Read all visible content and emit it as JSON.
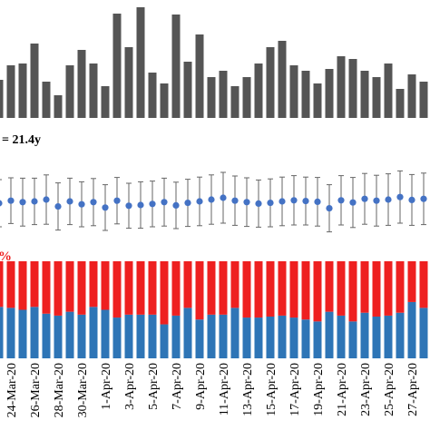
{
  "chart_data": [
    {
      "type": "bar",
      "color": "#555555",
      "ylim": [
        0,
        130
      ],
      "values": [
        42,
        58,
        60,
        82,
        40,
        25,
        58,
        75,
        60,
        35,
        115,
        78,
        122,
        50,
        38,
        114,
        62,
        92,
        45,
        52,
        35,
        45,
        60,
        78,
        85,
        58,
        52,
        38,
        54,
        68,
        65,
        52,
        45,
        60,
        32,
        48,
        40
      ]
    },
    {
      "type": "errorbar",
      "title": "= 21.4y",
      "color": "#4472c4",
      "ylim": [
        10,
        35
      ],
      "values": [
        21.5,
        22.2,
        21.8,
        22.0,
        22.5,
        20.6,
        22.0,
        21.2,
        21.8,
        20.3,
        22.2,
        20.8,
        21.0,
        21.3,
        21.8,
        20.9,
        21.6,
        22.0,
        22.5,
        23.0,
        22.2,
        21.8,
        21.4,
        21.6,
        22.0,
        22.3,
        22.1,
        21.9,
        20.1,
        22.3,
        21.7,
        22.7,
        22.2,
        22.5,
        23.2,
        22.4,
        22.7
      ],
      "errors": [
        6.5,
        6.3,
        6.6,
        6.4,
        6.8,
        6.5,
        6.4,
        6.2,
        6.5,
        6.3,
        6.4,
        6.2,
        6.4,
        6.3,
        6.6,
        6.4,
        6.5,
        6.7,
        6.8,
        7.0,
        6.8,
        6.7,
        6.5,
        6.6,
        6.7,
        6.8,
        6.6,
        6.7,
        6.5,
        6.8,
        6.9,
        7.0,
        7.0,
        7.1,
        7.2,
        7.0,
        7.1
      ]
    },
    {
      "type": "stacked-bar",
      "title": "%",
      "ylim": [
        0,
        100
      ],
      "categories": [
        null,
        "24-Mar-20",
        null,
        "26-Mar-20",
        null,
        "28-Mar-20",
        null,
        "30-Mar-20",
        null,
        "1-Apr-20",
        null,
        "3-Apr-20",
        null,
        "5-Apr-20",
        null,
        "7-Apr-20",
        null,
        "9-Apr-20",
        null,
        "11-Apr-20",
        null,
        "13-Apr-20",
        null,
        "15-Apr-20",
        null,
        "17-Apr-20",
        null,
        "19-Apr-20",
        null,
        "21-Apr-20",
        null,
        "23-Apr-20",
        null,
        "25-Apr-20",
        null,
        "27-Apr-20",
        null
      ],
      "series": [
        {
          "name": "blue",
          "color": "#2e75b6",
          "values": [
            53,
            52,
            50,
            53,
            46,
            44,
            48,
            45,
            53,
            50,
            42,
            45,
            45,
            45,
            35,
            44,
            52,
            40,
            45,
            45,
            52,
            42,
            42,
            43,
            44,
            42,
            40,
            38,
            48,
            44,
            38,
            47,
            43,
            44,
            47,
            58,
            52
          ]
        },
        {
          "name": "red",
          "color": "#ee2020",
          "values": [
            47,
            48,
            50,
            47,
            54,
            56,
            52,
            55,
            47,
            50,
            58,
            55,
            55,
            55,
            65,
            56,
            48,
            60,
            55,
            55,
            48,
            58,
            58,
            57,
            56,
            58,
            60,
            62,
            52,
            56,
            62,
            53,
            57,
            56,
            53,
            42,
            48
          ]
        }
      ]
    }
  ]
}
